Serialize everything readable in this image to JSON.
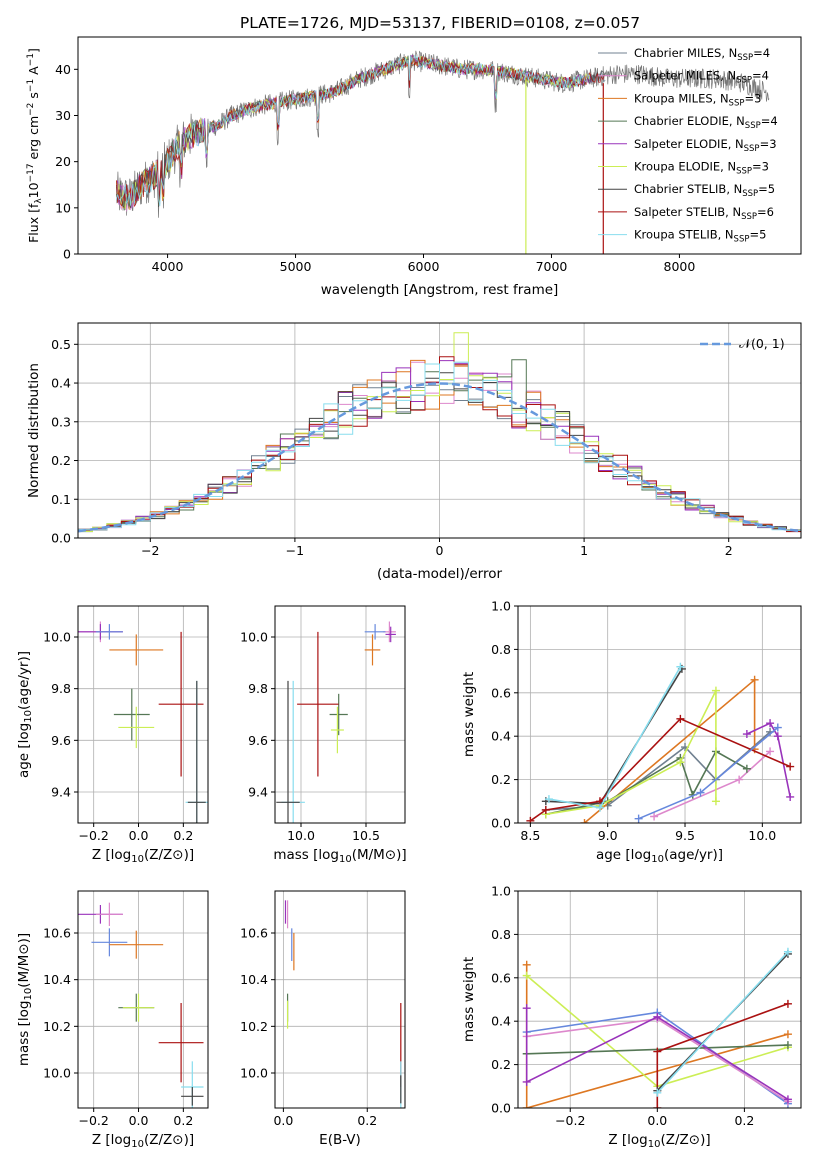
{
  "figure": {
    "title": "PLATE=1726, MJD=53137, FIBERID=0108, z=0.057"
  },
  "series_style": [
    {
      "name": "Chabrier MILES",
      "nssp": "4",
      "color": "#708090"
    },
    {
      "name": "Salpeter MILES",
      "nssp": "4",
      "color": "#dd88cc"
    },
    {
      "name": "Kroupa MILES",
      "nssp": "3",
      "color": "#dd7722"
    },
    {
      "name": "Chabrier ELODIE",
      "nssp": "4",
      "color": "#557755"
    },
    {
      "name": "Salpeter ELODIE",
      "nssp": "3",
      "color": "#9933bb"
    },
    {
      "name": "Kroupa ELODIE",
      "nssp": "3",
      "color": "#ccee55"
    },
    {
      "name": "Chabrier STELIB",
      "nssp": "5",
      "color": "#444444"
    },
    {
      "name": "Salpeter STELIB",
      "nssp": "6",
      "color": "#aa1111"
    },
    {
      "name": "Kroupa STELIB",
      "nssp": "5",
      "color": "#88ddee"
    }
  ],
  "chart_data": [
    {
      "id": "spectrum",
      "type": "line",
      "xlabel": "wavelength [Angstrom, rest frame]",
      "ylabel": "Flux [f",
      "ylabel_full": "Flux [fλ10⁻¹⁷ erg cm⁻² s⁻¹ A⁻¹]",
      "xlim": [
        3300,
        8950
      ],
      "ylim": [
        0,
        47
      ],
      "xticks": [
        4000,
        5000,
        6000,
        7000,
        8000
      ],
      "yticks": [
        0,
        10,
        20,
        30,
        40
      ],
      "grid": false,
      "legend_position": "top-right",
      "continuum": {
        "x": [
          3600,
          3700,
          3800,
          3900,
          4000,
          4100,
          4200,
          4300,
          4400,
          4500,
          4700,
          4900,
          5100,
          5300,
          5500,
          5700,
          5900,
          6100,
          6300,
          6500,
          6700,
          6900,
          7100,
          7300,
          7500,
          7700,
          7900,
          8100,
          8300,
          8500,
          8700
        ],
        "y": [
          13,
          12,
          15,
          17,
          20,
          24,
          26,
          27,
          28,
          30,
          32,
          33,
          34,
          35,
          38,
          40,
          42,
          41,
          40,
          40,
          39,
          38,
          37,
          38,
          39,
          39,
          38,
          38,
          38,
          37,
          35
        ]
      }
    },
    {
      "id": "residuals",
      "type": "step",
      "xlabel": "(data-model)/error",
      "ylabel": "Normed distribution",
      "xlim": [
        -2.5,
        2.5
      ],
      "ylim": [
        0,
        0.555
      ],
      "xticks": [
        -2,
        -1,
        0,
        1,
        2
      ],
      "yticks": [
        0.0,
        0.1,
        0.2,
        0.3,
        0.4,
        0.5
      ],
      "grid": true,
      "legend": "𝒩(0, 1)",
      "legend_position": "top-right",
      "gaussian": {
        "mean": 0,
        "sigma": 1
      }
    },
    {
      "id": "age-vs-Z",
      "type": "errorbar",
      "xlabel": "Z [log",
      "ylabel": "age  [log",
      "xlim": [
        -0.27,
        0.31
      ],
      "ylim": [
        9.28,
        10.12
      ],
      "xticks": [
        -0.2,
        0.0,
        0.2
      ],
      "yticks": [
        9.4,
        9.6,
        9.8,
        10.0
      ],
      "grid": true,
      "points": [
        {
          "x": -0.17,
          "xerr": 0.1,
          "y": 10.02,
          "yerr": 0.04,
          "color": "#dd88cc"
        },
        {
          "x": -0.17,
          "xerr": 0.1,
          "y": 10.02,
          "yerr": 0.03,
          "color": "#9933bb"
        },
        {
          "x": -0.13,
          "xerr": 0.06,
          "y": 10.02,
          "yerr": 0.03,
          "color": "#6688dd"
        },
        {
          "x": -0.01,
          "xerr": 0.12,
          "y": 9.95,
          "yerr": 0.06,
          "color": "#dd7722"
        },
        {
          "x": -0.03,
          "xerr": 0.08,
          "y": 9.7,
          "yerr": 0.1,
          "color": "#557755"
        },
        {
          "x": -0.01,
          "xerr": 0.08,
          "y": 9.65,
          "yerr": 0.08,
          "color": "#ccee55"
        },
        {
          "x": 0.19,
          "xerr": 0.1,
          "y": 9.74,
          "yerr": 0.28,
          "color": "#aa1111"
        },
        {
          "x": 0.26,
          "xerr": 0.05,
          "y": 9.36,
          "yerr": 0.47,
          "color": "#88ddee"
        },
        {
          "x": 0.26,
          "xerr": 0.04,
          "y": 9.36,
          "yerr": 0.47,
          "color": "#444444"
        }
      ]
    },
    {
      "id": "age-vs-mass",
      "type": "errorbar",
      "xlabel": "mass [log",
      "ylabel": "",
      "xlim": [
        9.8,
        10.8
      ],
      "ylim": [
        9.28,
        10.12
      ],
      "xticks": [
        10.0,
        10.5
      ],
      "yticks": [
        9.4,
        9.6,
        9.8,
        10.0
      ],
      "grid": true,
      "points": [
        {
          "x": 10.68,
          "xerr": 0.05,
          "y": 10.02,
          "yerr": 0.04,
          "color": "#dd88cc"
        },
        {
          "x": 10.69,
          "xerr": 0.04,
          "y": 10.01,
          "yerr": 0.03,
          "color": "#9933bb"
        },
        {
          "x": 10.57,
          "xerr": 0.08,
          "y": 10.02,
          "yerr": 0.03,
          "color": "#6688dd"
        },
        {
          "x": 10.55,
          "xerr": 0.06,
          "y": 9.95,
          "yerr": 0.06,
          "color": "#dd7722"
        },
        {
          "x": 10.29,
          "xerr": 0.07,
          "y": 9.7,
          "yerr": 0.08,
          "color": "#557755"
        },
        {
          "x": 10.28,
          "xerr": 0.05,
          "y": 9.64,
          "yerr": 0.09,
          "color": "#ccee55"
        },
        {
          "x": 10.13,
          "xerr": 0.16,
          "y": 9.74,
          "yerr": 0.28,
          "color": "#aa1111"
        },
        {
          "x": 9.94,
          "xerr": 0.09,
          "y": 9.36,
          "yerr": 0.47,
          "color": "#88ddee"
        },
        {
          "x": 9.9,
          "xerr": 0.09,
          "y": 9.36,
          "yerr": 0.47,
          "color": "#444444"
        }
      ]
    },
    {
      "id": "weight-vs-age",
      "type": "line",
      "xlabel": "age  [log",
      "ylabel": "mass weight",
      "xlim": [
        8.42,
        10.25
      ],
      "ylim": [
        0,
        1.0
      ],
      "xticks": [
        8.5,
        9.0,
        9.5,
        10.0
      ],
      "yticks": [
        0.0,
        0.2,
        0.4,
        0.6,
        0.8,
        1.0
      ],
      "grid": true,
      "series": [
        {
          "color": "#708090",
          "x": [
            8.6,
            9.0,
            9.5,
            9.7,
            10.05
          ],
          "y": [
            0.06,
            0.08,
            0.35,
            0.2,
            0.42
          ]
        },
        {
          "color": "#dd88cc",
          "x": [
            9.3,
            9.85,
            10.05
          ],
          "y": [
            0.03,
            0.2,
            0.33
          ]
        },
        {
          "color": "#dd7722",
          "x": [
            8.85,
            9.95,
            9.95
          ],
          "y": [
            0.0,
            0.66,
            0.34
          ]
        },
        {
          "color": "#557755",
          "x": [
            8.6,
            9.0,
            9.47,
            9.55,
            9.7,
            9.9
          ],
          "y": [
            0.04,
            0.1,
            0.3,
            0.13,
            0.33,
            0.25
          ]
        },
        {
          "color": "#9933bb",
          "x": [
            9.9,
            10.05,
            10.1,
            10.18
          ],
          "y": [
            0.41,
            0.46,
            0.4,
            0.12
          ]
        },
        {
          "color": "#ccee55",
          "x": [
            8.6,
            8.95,
            9.47,
            9.7,
            9.7
          ],
          "y": [
            0.04,
            0.08,
            0.28,
            0.61,
            0.1
          ]
        },
        {
          "color": "#444444",
          "x": [
            8.6,
            8.95,
            9.48
          ],
          "y": [
            0.1,
            0.09,
            0.71
          ]
        },
        {
          "color": "#aa1111",
          "x": [
            8.5,
            8.6,
            8.95,
            9.47,
            10.18
          ],
          "y": [
            0.01,
            0.06,
            0.1,
            0.48,
            0.26
          ]
        },
        {
          "color": "#6688dd",
          "x": [
            9.2,
            9.6,
            10.1
          ],
          "y": [
            0.02,
            0.14,
            0.44
          ]
        },
        {
          "color": "#88ddee",
          "x": [
            8.62,
            8.95,
            9.47
          ],
          "y": [
            0.11,
            0.07,
            0.72
          ]
        }
      ]
    },
    {
      "id": "mass-vs-Z",
      "type": "errorbar",
      "xlabel": "Z [log",
      "ylabel": "mass [log",
      "xlim": [
        -0.27,
        0.31
      ],
      "ylim": [
        9.85,
        10.78
      ],
      "xticks": [
        -0.2,
        0.0,
        0.2
      ],
      "yticks": [
        10.0,
        10.2,
        10.4,
        10.6
      ],
      "grid": true,
      "points": [
        {
          "x": -0.17,
          "xerr": 0.1,
          "y": 10.68,
          "yerr": 0.04,
          "color": "#9933bb"
        },
        {
          "x": -0.13,
          "xerr": 0.06,
          "y": 10.68,
          "yerr": 0.05,
          "color": "#dd88cc"
        },
        {
          "x": -0.13,
          "xerr": 0.08,
          "y": 10.56,
          "yerr": 0.06,
          "color": "#6688dd"
        },
        {
          "x": -0.01,
          "xerr": 0.12,
          "y": 10.55,
          "yerr": 0.06,
          "color": "#dd7722"
        },
        {
          "x": -0.01,
          "xerr": 0.08,
          "y": 10.28,
          "yerr": 0.06,
          "color": "#557755"
        },
        {
          "x": 0.0,
          "xerr": 0.07,
          "y": 10.28,
          "yerr": 0.06,
          "color": "#ccee55"
        },
        {
          "x": 0.19,
          "xerr": 0.1,
          "y": 10.13,
          "yerr": 0.17,
          "color": "#aa1111"
        },
        {
          "x": 0.24,
          "xerr": 0.05,
          "y": 9.94,
          "yerr": 0.11,
          "color": "#88ddee"
        },
        {
          "x": 0.24,
          "xerr": 0.05,
          "y": 9.9,
          "yerr": 0.04,
          "color": "#444444"
        }
      ]
    },
    {
      "id": "mass-vs-EBV",
      "type": "errorbar",
      "xlabel": "E(B-V)",
      "ylabel": "",
      "xlim": [
        -0.02,
        0.29
      ],
      "ylim": [
        9.85,
        10.78
      ],
      "xticks": [
        0.0,
        0.2
      ],
      "yticks": [
        10.0,
        10.2,
        10.4,
        10.6
      ],
      "grid": true,
      "points": [
        {
          "x": 0.005,
          "xerr": 0.0,
          "y": 10.69,
          "yerr": 0.05,
          "color": "#9933bb"
        },
        {
          "x": 0.01,
          "xerr": 0.0,
          "y": 10.68,
          "yerr": 0.06,
          "color": "#dd88cc"
        },
        {
          "x": 0.02,
          "xerr": 0.0,
          "y": 10.55,
          "yerr": 0.07,
          "color": "#6688dd"
        },
        {
          "x": 0.025,
          "xerr": 0.0,
          "y": 10.52,
          "yerr": 0.08,
          "color": "#dd7722"
        },
        {
          "x": 0.01,
          "xerr": 0.0,
          "y": 10.28,
          "yerr": 0.06,
          "color": "#557755"
        },
        {
          "x": 0.01,
          "xerr": 0.0,
          "y": 10.25,
          "yerr": 0.06,
          "color": "#ccee55"
        },
        {
          "x": 0.28,
          "xerr": 0.0,
          "y": 10.12,
          "yerr": 0.18,
          "color": "#aa1111"
        },
        {
          "x": 0.28,
          "xerr": 0.0,
          "y": 9.95,
          "yerr": 0.1,
          "color": "#88ddee"
        },
        {
          "x": 0.28,
          "xerr": 0.0,
          "y": 9.93,
          "yerr": 0.06,
          "color": "#444444"
        }
      ]
    },
    {
      "id": "weight-vs-Z",
      "type": "line",
      "xlabel": "Z [log",
      "ylabel": "mass weight",
      "xlim": [
        -0.32,
        0.33
      ],
      "ylim": [
        0,
        1.0
      ],
      "xticks": [
        -0.2,
        0.0,
        0.2
      ],
      "yticks": [
        0.0,
        0.2,
        0.4,
        0.6,
        0.8,
        1.0
      ],
      "grid": true,
      "series": [
        {
          "color": "#dd7722",
          "x": [
            -0.3,
            -0.3,
            0.3
          ],
          "y": [
            0.66,
            0.0,
            0.34
          ]
        },
        {
          "color": "#ccee55",
          "x": [
            -0.3,
            0.0,
            0.3
          ],
          "y": [
            0.61,
            0.1,
            0.28
          ]
        },
        {
          "color": "#6688dd",
          "x": [
            -0.3,
            0.0,
            0.3
          ],
          "y": [
            0.35,
            0.44,
            0.02
          ]
        },
        {
          "color": "#dd88cc",
          "x": [
            -0.3,
            0.0,
            0.3
          ],
          "y": [
            0.33,
            0.41,
            0.03
          ]
        },
        {
          "color": "#557755",
          "x": [
            -0.3,
            0.3
          ],
          "y": [
            0.25,
            0.29
          ]
        },
        {
          "color": "#9933bb",
          "x": [
            -0.3,
            -0.3,
            0.0,
            0.3
          ],
          "y": [
            0.46,
            0.12,
            0.42,
            0.04
          ]
        },
        {
          "color": "#aa1111",
          "x": [
            0.0,
            0.0,
            0.3
          ],
          "y": [
            0.0,
            0.26,
            0.48
          ]
        },
        {
          "color": "#444444",
          "x": [
            0.0,
            0.3
          ],
          "y": [
            0.08,
            0.71
          ]
        },
        {
          "color": "#88ddee",
          "x": [
            0.0,
            0.3
          ],
          "y": [
            0.07,
            0.72
          ]
        }
      ]
    }
  ]
}
